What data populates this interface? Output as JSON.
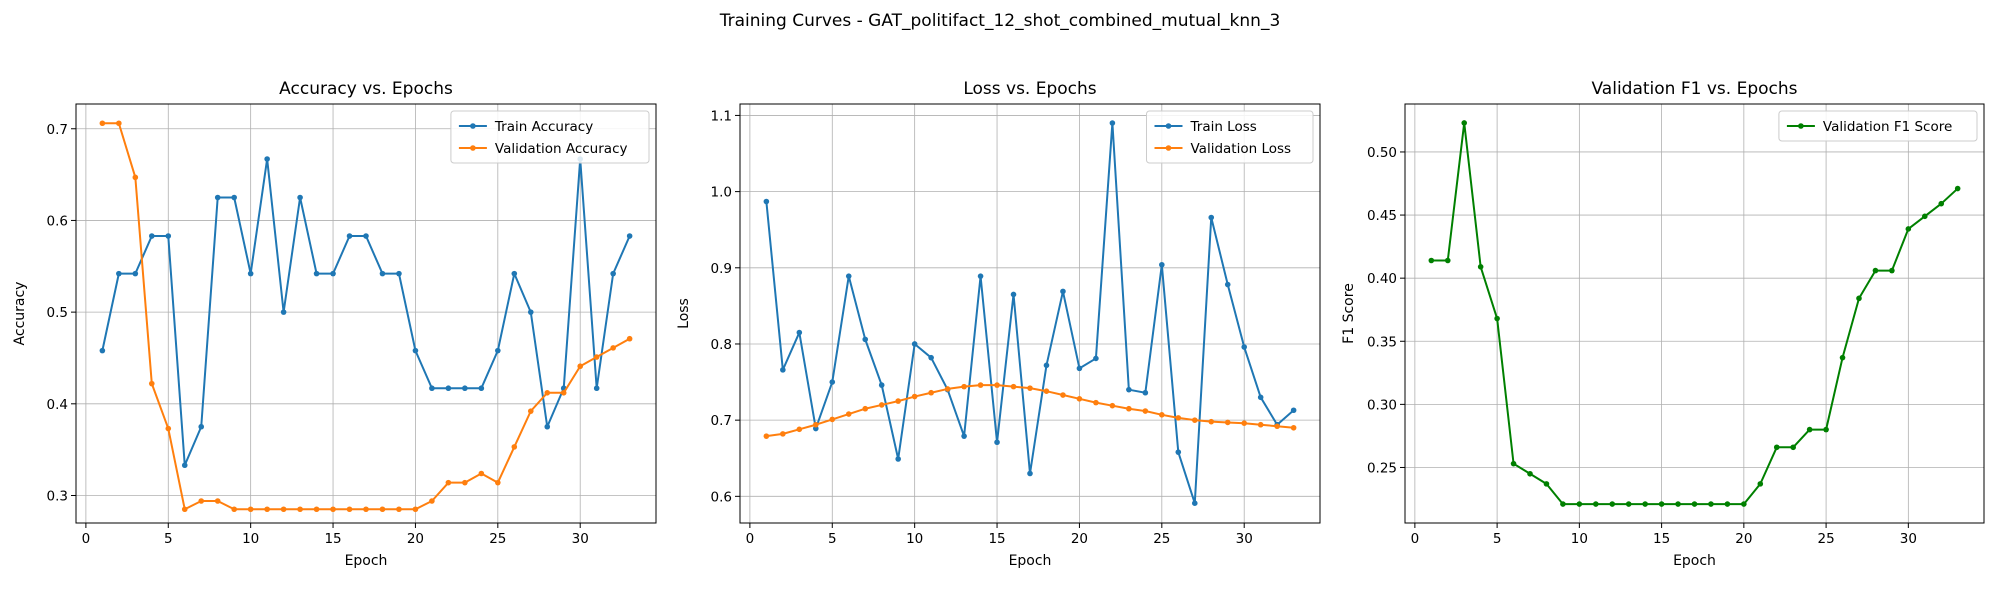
{
  "figure": {
    "title": "Training Curves - GAT_politifact_12_shot_combined_mutual_knn_3"
  },
  "chart_data": [
    {
      "type": "line",
      "title": "Accuracy vs. Epochs",
      "xlabel": "Epoch",
      "ylabel": "Accuracy",
      "xlim": [
        -0.6,
        34.6
      ],
      "ylim": [
        0.27,
        0.727
      ],
      "xticks": [
        0,
        5,
        10,
        15,
        20,
        25,
        30
      ],
      "yticks": [
        0.3,
        0.4,
        0.5,
        0.6,
        0.7
      ],
      "ytick_labels": [
        "0.3",
        "0.4",
        "0.5",
        "0.6",
        "0.7"
      ],
      "grid": true,
      "legend": "upper right",
      "x": [
        1,
        2,
        3,
        4,
        5,
        6,
        7,
        8,
        9,
        10,
        11,
        12,
        13,
        14,
        15,
        16,
        17,
        18,
        19,
        20,
        21,
        22,
        23,
        24,
        25,
        26,
        27,
        28,
        29,
        30,
        31,
        32,
        33
      ],
      "series": [
        {
          "name": "Train Accuracy",
          "color": "#1f77b4",
          "values": [
            0.458,
            0.542,
            0.542,
            0.583,
            0.583,
            0.333,
            0.375,
            0.625,
            0.625,
            0.542,
            0.667,
            0.5,
            0.625,
            0.542,
            0.542,
            0.583,
            0.583,
            0.542,
            0.542,
            0.458,
            0.417,
            0.417,
            0.417,
            0.417,
            0.458,
            0.542,
            0.5,
            0.375,
            0.417,
            0.667,
            0.417,
            0.542,
            0.583
          ]
        },
        {
          "name": "Validation Accuracy",
          "color": "#ff7f0e",
          "values": [
            0.706,
            0.706,
            0.647,
            0.422,
            0.373,
            0.285,
            0.294,
            0.294,
            0.285,
            0.285,
            0.285,
            0.285,
            0.285,
            0.285,
            0.285,
            0.285,
            0.285,
            0.285,
            0.285,
            0.285,
            0.294,
            0.314,
            0.314,
            0.324,
            0.314,
            0.353,
            0.392,
            0.412,
            0.412,
            0.441,
            0.451,
            0.461,
            0.471
          ]
        }
      ]
    },
    {
      "type": "line",
      "title": "Loss vs. Epochs",
      "xlabel": "Epoch",
      "ylabel": "Loss",
      "xlim": [
        -0.6,
        34.6
      ],
      "ylim": [
        0.565,
        1.115
      ],
      "xticks": [
        0,
        5,
        10,
        15,
        20,
        25,
        30
      ],
      "yticks": [
        0.6,
        0.7,
        0.8,
        0.9,
        1.0,
        1.1
      ],
      "ytick_labels": [
        "0.6",
        "0.7",
        "0.8",
        "0.9",
        "1.0",
        "1.1"
      ],
      "grid": true,
      "legend": "upper right",
      "x": [
        1,
        2,
        3,
        4,
        5,
        6,
        7,
        8,
        9,
        10,
        11,
        12,
        13,
        14,
        15,
        16,
        17,
        18,
        19,
        20,
        21,
        22,
        23,
        24,
        25,
        26,
        27,
        28,
        29,
        30,
        31,
        32,
        33
      ],
      "series": [
        {
          "name": "Train Loss",
          "color": "#1f77b4",
          "values": [
            0.987,
            0.766,
            0.815,
            0.689,
            0.75,
            0.889,
            0.806,
            0.746,
            0.649,
            0.8,
            0.782,
            0.74,
            0.679,
            0.889,
            0.671,
            0.865,
            0.63,
            0.772,
            0.869,
            0.768,
            0.781,
            1.09,
            0.74,
            0.736,
            0.904,
            0.658,
            0.591,
            0.966,
            0.878,
            0.796,
            0.73,
            0.694,
            0.713
          ]
        },
        {
          "name": "Validation Loss",
          "color": "#ff7f0e",
          "values": [
            0.679,
            0.682,
            0.688,
            0.694,
            0.701,
            0.708,
            0.715,
            0.72,
            0.725,
            0.731,
            0.736,
            0.741,
            0.744,
            0.746,
            0.746,
            0.744,
            0.742,
            0.738,
            0.733,
            0.728,
            0.723,
            0.719,
            0.715,
            0.712,
            0.707,
            0.703,
            0.7,
            0.698,
            0.697,
            0.696,
            0.694,
            0.692,
            0.69
          ]
        }
      ]
    },
    {
      "type": "line",
      "title": "Validation F1 vs. Epochs",
      "xlabel": "Epoch",
      "ylabel": "F1 Score",
      "xlim": [
        -0.6,
        34.6
      ],
      "ylim": [
        0.206,
        0.538
      ],
      "xticks": [
        0,
        5,
        10,
        15,
        20,
        25,
        30
      ],
      "yticks": [
        0.25,
        0.3,
        0.35,
        0.4,
        0.45,
        0.5
      ],
      "ytick_labels": [
        "0.25",
        "0.30",
        "0.35",
        "0.40",
        "0.45",
        "0.50"
      ],
      "grid": true,
      "legend": "upper right",
      "x": [
        1,
        2,
        3,
        4,
        5,
        6,
        7,
        8,
        9,
        10,
        11,
        12,
        13,
        14,
        15,
        16,
        17,
        18,
        19,
        20,
        21,
        22,
        23,
        24,
        25,
        26,
        27,
        28,
        29,
        30,
        31,
        32,
        33
      ],
      "series": [
        {
          "name": "Validation F1 Score",
          "color": "#008000",
          "values": [
            0.414,
            0.414,
            0.523,
            0.409,
            0.368,
            0.253,
            0.245,
            0.237,
            0.221,
            0.221,
            0.221,
            0.221,
            0.221,
            0.221,
            0.221,
            0.221,
            0.221,
            0.221,
            0.221,
            0.221,
            0.237,
            0.266,
            0.266,
            0.28,
            0.28,
            0.337,
            0.384,
            0.406,
            0.406,
            0.439,
            0.449,
            0.459,
            0.471
          ]
        }
      ]
    }
  ]
}
